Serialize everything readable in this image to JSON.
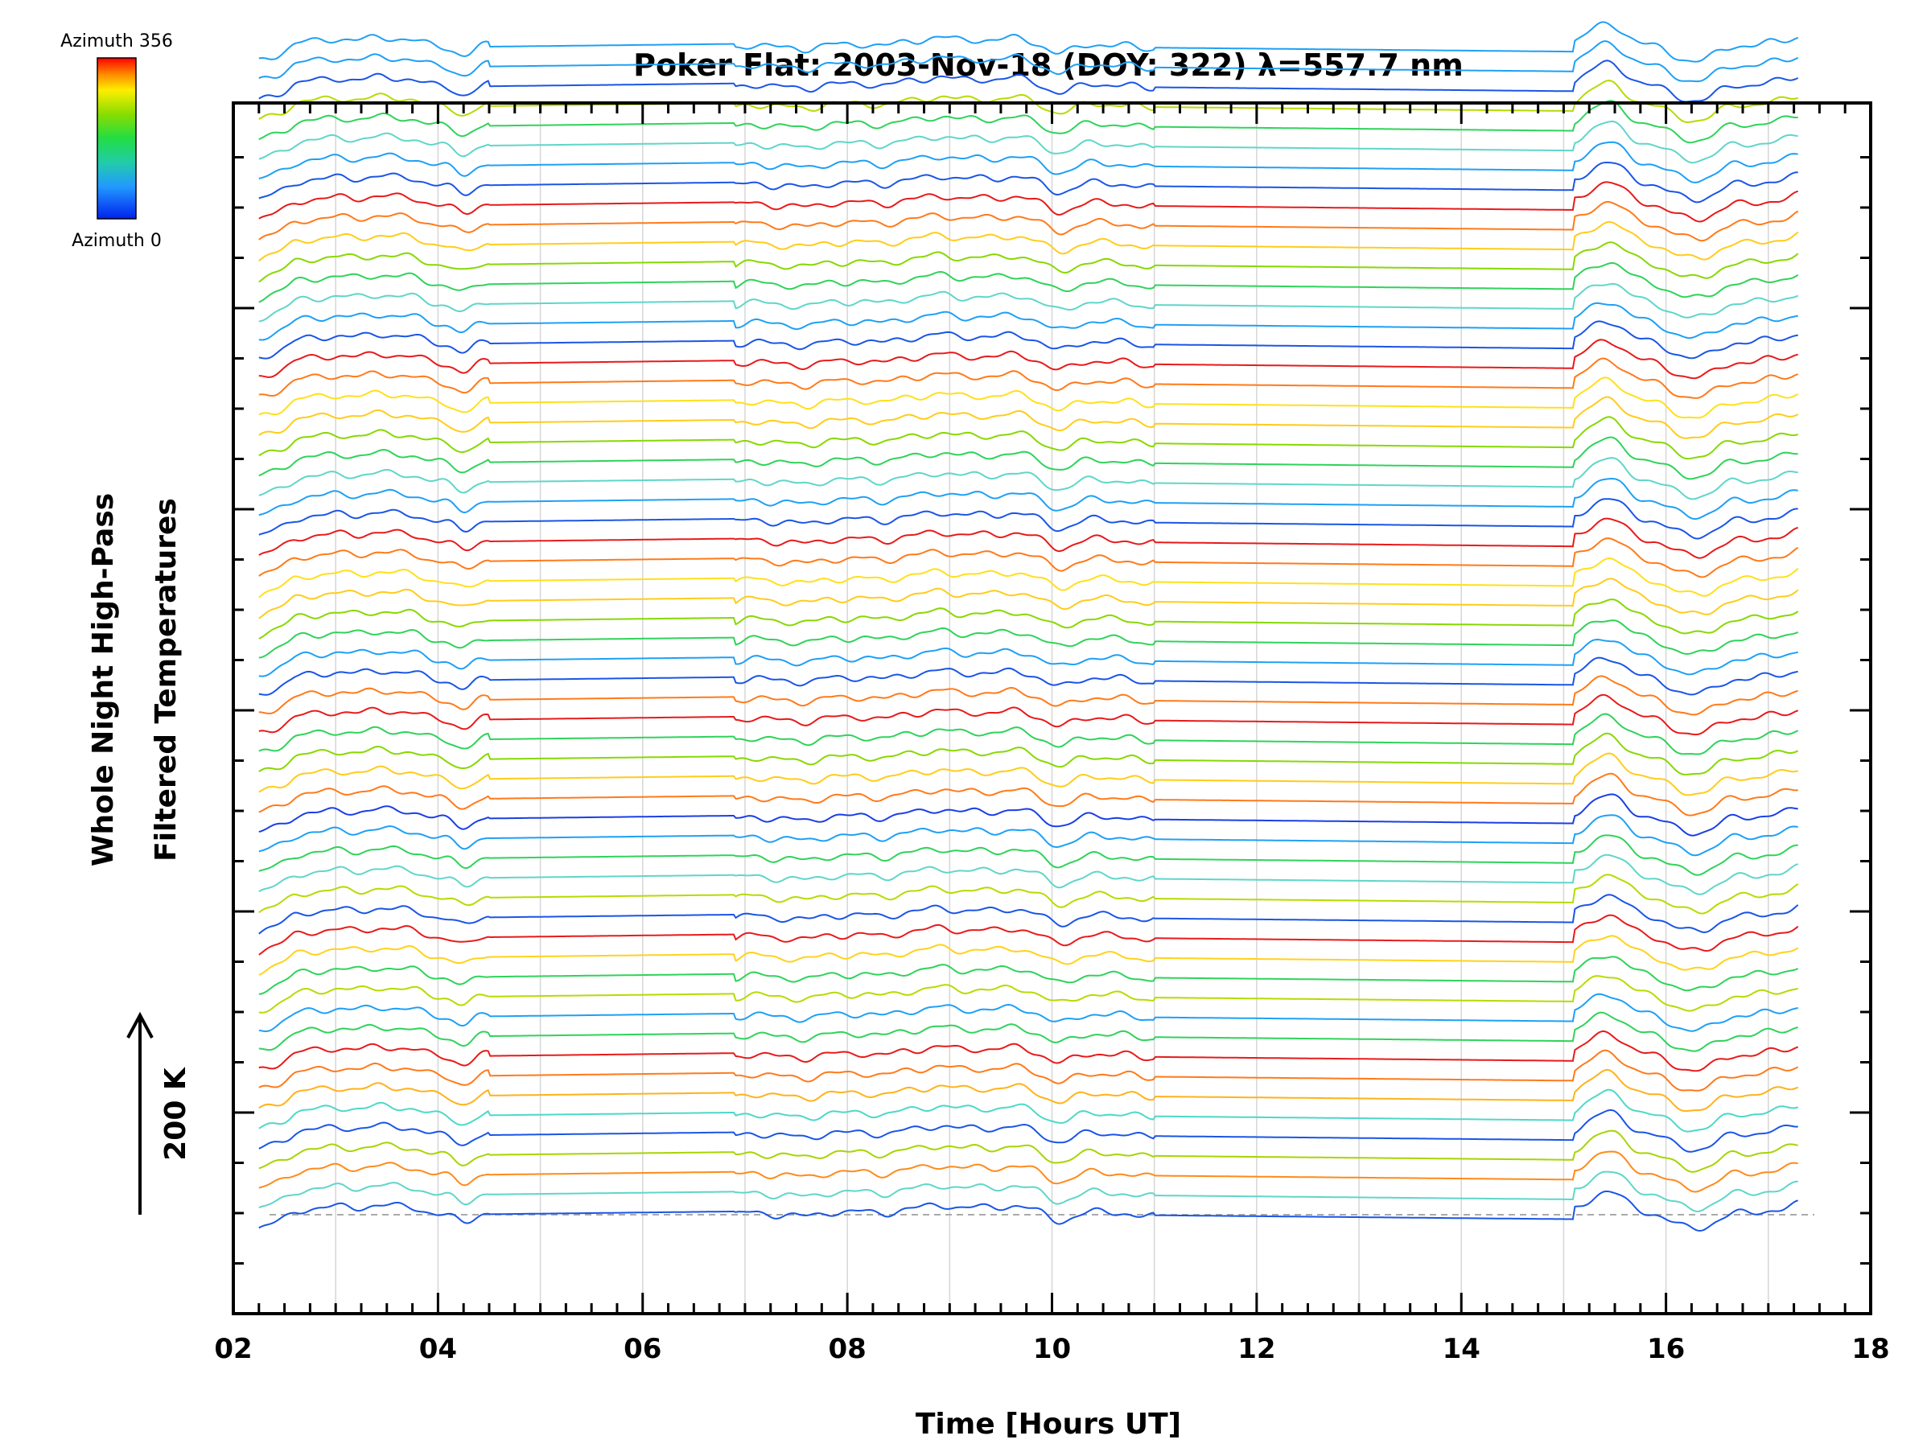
{
  "chart_data": {
    "type": "line",
    "title": "Poker Flat: 2003-Nov-18 (DOY: 322) λ=557.7 nm",
    "xlabel": "Time [Hours UT]",
    "ylabel_line1": "Whole Night High-Pass",
    "ylabel_line2": "Filtered Temperatures",
    "scale_label": "200 K",
    "colorbar": {
      "top_label": "Azimuth 356",
      "bottom_label": "Azimuth 0",
      "colors": [
        "#ff0000",
        "#ff8800",
        "#ffee00",
        "#88dd00",
        "#22dd44",
        "#22ccaa",
        "#2299ff",
        "#0022ee"
      ]
    },
    "xlim": [
      2,
      18
    ],
    "x_ticks": [
      "02",
      "04",
      "06",
      "08",
      "10",
      "12",
      "14",
      "16",
      "18"
    ],
    "x_gridlines": [
      3,
      4,
      5,
      6,
      7,
      8,
      9,
      10,
      11,
      12,
      13,
      14,
      15,
      16,
      17
    ],
    "n_series": 60,
    "series_offset_K": 40,
    "time_range_hours": [
      2.25,
      17.3
    ],
    "series_colors": [
      "#1a55e6",
      "#5fd6c9",
      "#ff8a1a",
      "#a8d400",
      "#1a55e6",
      "#4dd8c8",
      "#ffb21a",
      "#ff7a1a",
      "#e81a1a",
      "#2fd35a",
      "#1ea0f5",
      "#b4dc00",
      "#2fd35a",
      "#ffd21a",
      "#e81a1a",
      "#1a55e6",
      "#b4dc00",
      "#5fd6c9",
      "#2fd35a",
      "#1ea0f5",
      "#1a3fe6",
      "#ff7a1a",
      "#ffcc1a",
      "#88d800",
      "#2fd35a",
      "#e81a1a",
      "#ff7a1a",
      "#1a55e6",
      "#1ea0f5",
      "#2fd35a",
      "#88d800",
      "#ffcc1a",
      "#ffe01a",
      "#ff7a1a",
      "#e81a1a",
      "#1a55e6",
      "#1ea0f5",
      "#5fd6c9",
      "#2fd35a",
      "#88d800",
      "#ffcc1a",
      "#ffe01a",
      "#ff7a1a",
      "#e81a1a",
      "#1a55e6",
      "#1ea0f5",
      "#5fd6c9",
      "#2fd35a",
      "#88d800",
      "#ffcc1a",
      "#ff7a1a",
      "#e81a1a",
      "#1a55e6",
      "#1ea0f5",
      "#5fd6c9",
      "#2fd35a",
      "#b4dc00",
      "#1a55e6",
      "#1ea0f5",
      "#1ea0f5"
    ]
  }
}
